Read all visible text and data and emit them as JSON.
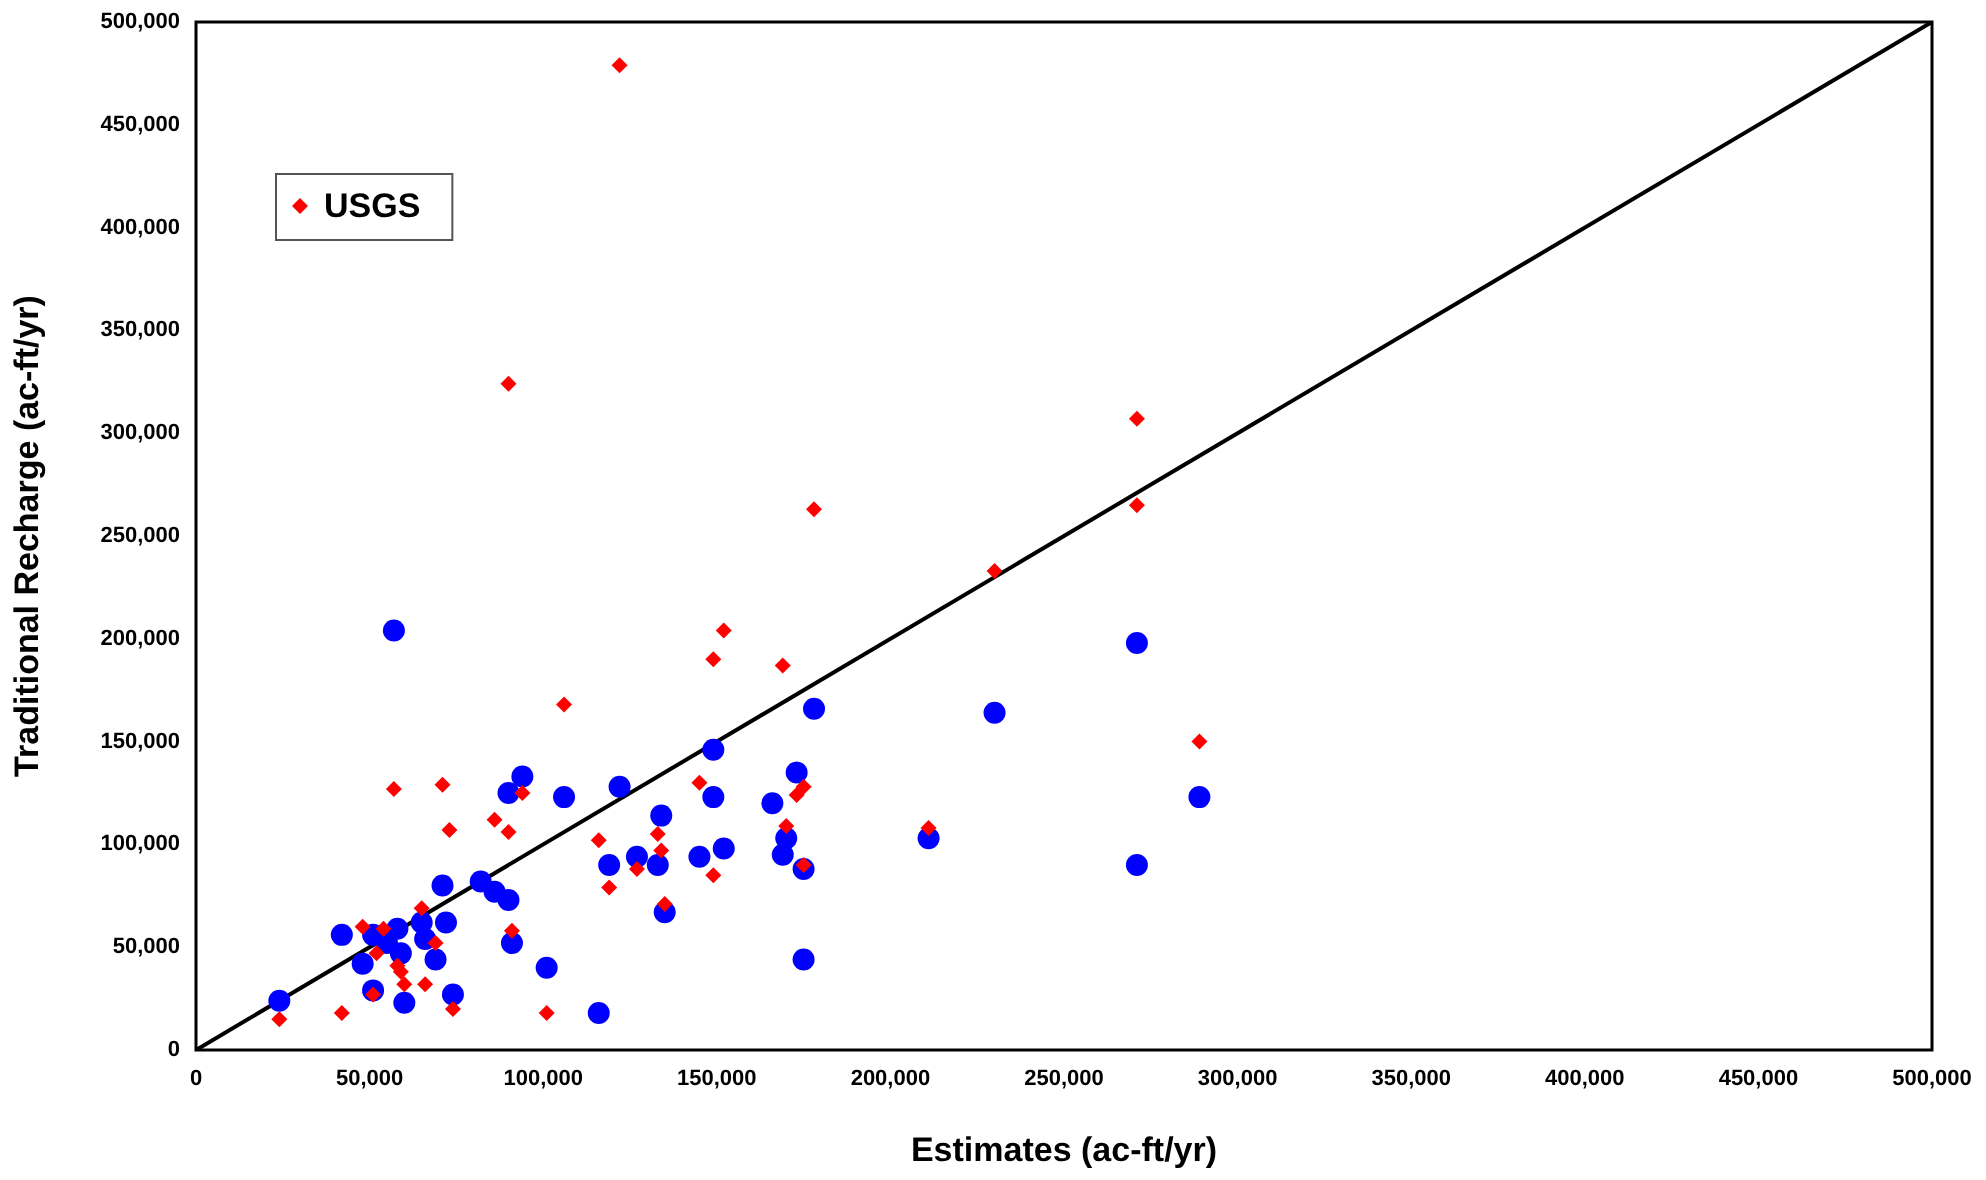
{
  "chart_data": {
    "type": "scatter",
    "xlabel": "Estimates (ac-ft/yr)",
    "ylabel": "Traditional Recharge (ac-ft/yr)",
    "xlim": [
      0,
      500000
    ],
    "ylim": [
      0,
      500000
    ],
    "xticks": [
      0,
      {
        "value": 50000,
        "label": "50,000"
      },
      {
        "value": 100000,
        "label": "100,000"
      },
      {
        "value": 150000,
        "label": "150,000"
      },
      {
        "value": 200000,
        "label": "200,000"
      },
      {
        "value": 250000,
        "label": "250,000"
      },
      {
        "value": 300000,
        "label": "300,000"
      },
      {
        "value": 350000,
        "label": "350,000"
      },
      {
        "value": 400000,
        "label": "400,000"
      },
      {
        "value": 450000,
        "label": "450,000"
      },
      {
        "value": 500000,
        "label": "500,000"
      }
    ],
    "yticks": [
      0,
      {
        "value": 50000,
        "label": "50,000"
      },
      {
        "value": 100000,
        "label": "100,000"
      },
      {
        "value": 150000,
        "label": "150,000"
      },
      {
        "value": 200000,
        "label": "200,000"
      },
      {
        "value": 250000,
        "label": "250,000"
      },
      {
        "value": 300000,
        "label": "300,000"
      },
      {
        "value": 350000,
        "label": "350,000"
      },
      {
        "value": 400000,
        "label": "400,000"
      },
      {
        "value": 450000,
        "label": "450,000"
      },
      {
        "value": 500000,
        "label": "500,000"
      }
    ],
    "grid": false,
    "legend": "top left",
    "series": [
      {
        "name": "USGS",
        "color": "#ff0000",
        "marker": "diamond",
        "x": [
          24000,
          42000,
          48000,
          54000,
          52000,
          58000,
          59000,
          60000,
          66000,
          51000,
          65000,
          69000,
          74000,
          57000,
          71000,
          73000,
          86000,
          90000,
          94000,
          91000,
          101000,
          106000,
          116000,
          119000,
          127000,
          133000,
          134000,
          135000,
          145000,
          149000,
          149000,
          169000,
          170000,
          173000,
          175000,
          175000,
          211000,
          122000,
          90000,
          271000,
          178000,
          230000,
          271000,
          152000,
          289000
        ],
        "values": [
          15000,
          18000,
          60000,
          59000,
          47000,
          41000,
          38000,
          32000,
          32000,
          27000,
          69000,
          52000,
          20000,
          127000,
          129000,
          107000,
          112000,
          106000,
          125000,
          58000,
          18000,
          168000,
          102000,
          79000,
          88000,
          105000,
          97000,
          71000,
          130000,
          85000,
          190000,
          187000,
          109000,
          124000,
          128000,
          90000,
          108000,
          479000,
          324000,
          307000,
          263000,
          233000,
          265000,
          204000,
          150000
        ]
      },
      {
        "color": "#0000ff",
        "marker": "circle",
        "x": [
          24000,
          42000,
          48000,
          51000,
          55000,
          58000,
          59000,
          51000,
          60000,
          65000,
          66000,
          69000,
          74000,
          71000,
          72000,
          82000,
          86000,
          90000,
          91000,
          90000,
          94000,
          106000,
          101000,
          122000,
          149000,
          178000,
          149000,
          166000,
          173000,
          134000,
          119000,
          127000,
          133000,
          145000,
          152000,
          170000,
          169000,
          175000,
          135000,
          175000,
          116000,
          211000,
          57000,
          271000,
          230000,
          289000,
          271000
        ],
        "values": [
          24000,
          56000,
          42000,
          56000,
          52000,
          59000,
          47000,
          29000,
          23000,
          62000,
          54000,
          44000,
          27000,
          80000,
          62000,
          82000,
          77000,
          73000,
          52000,
          125000,
          133000,
          123000,
          40000,
          128000,
          146000,
          166000,
          123000,
          120000,
          135000,
          114000,
          90000,
          94000,
          90000,
          94000,
          98000,
          103000,
          95000,
          88000,
          67000,
          44000,
          18000,
          103000,
          204000,
          198000,
          164000,
          123000,
          90000
        ]
      },
      {
        "type": "line",
        "color": "#000000",
        "marker": "none",
        "x": [
          0,
          500000
        ],
        "values": [
          0,
          500000
        ]
      }
    ]
  }
}
